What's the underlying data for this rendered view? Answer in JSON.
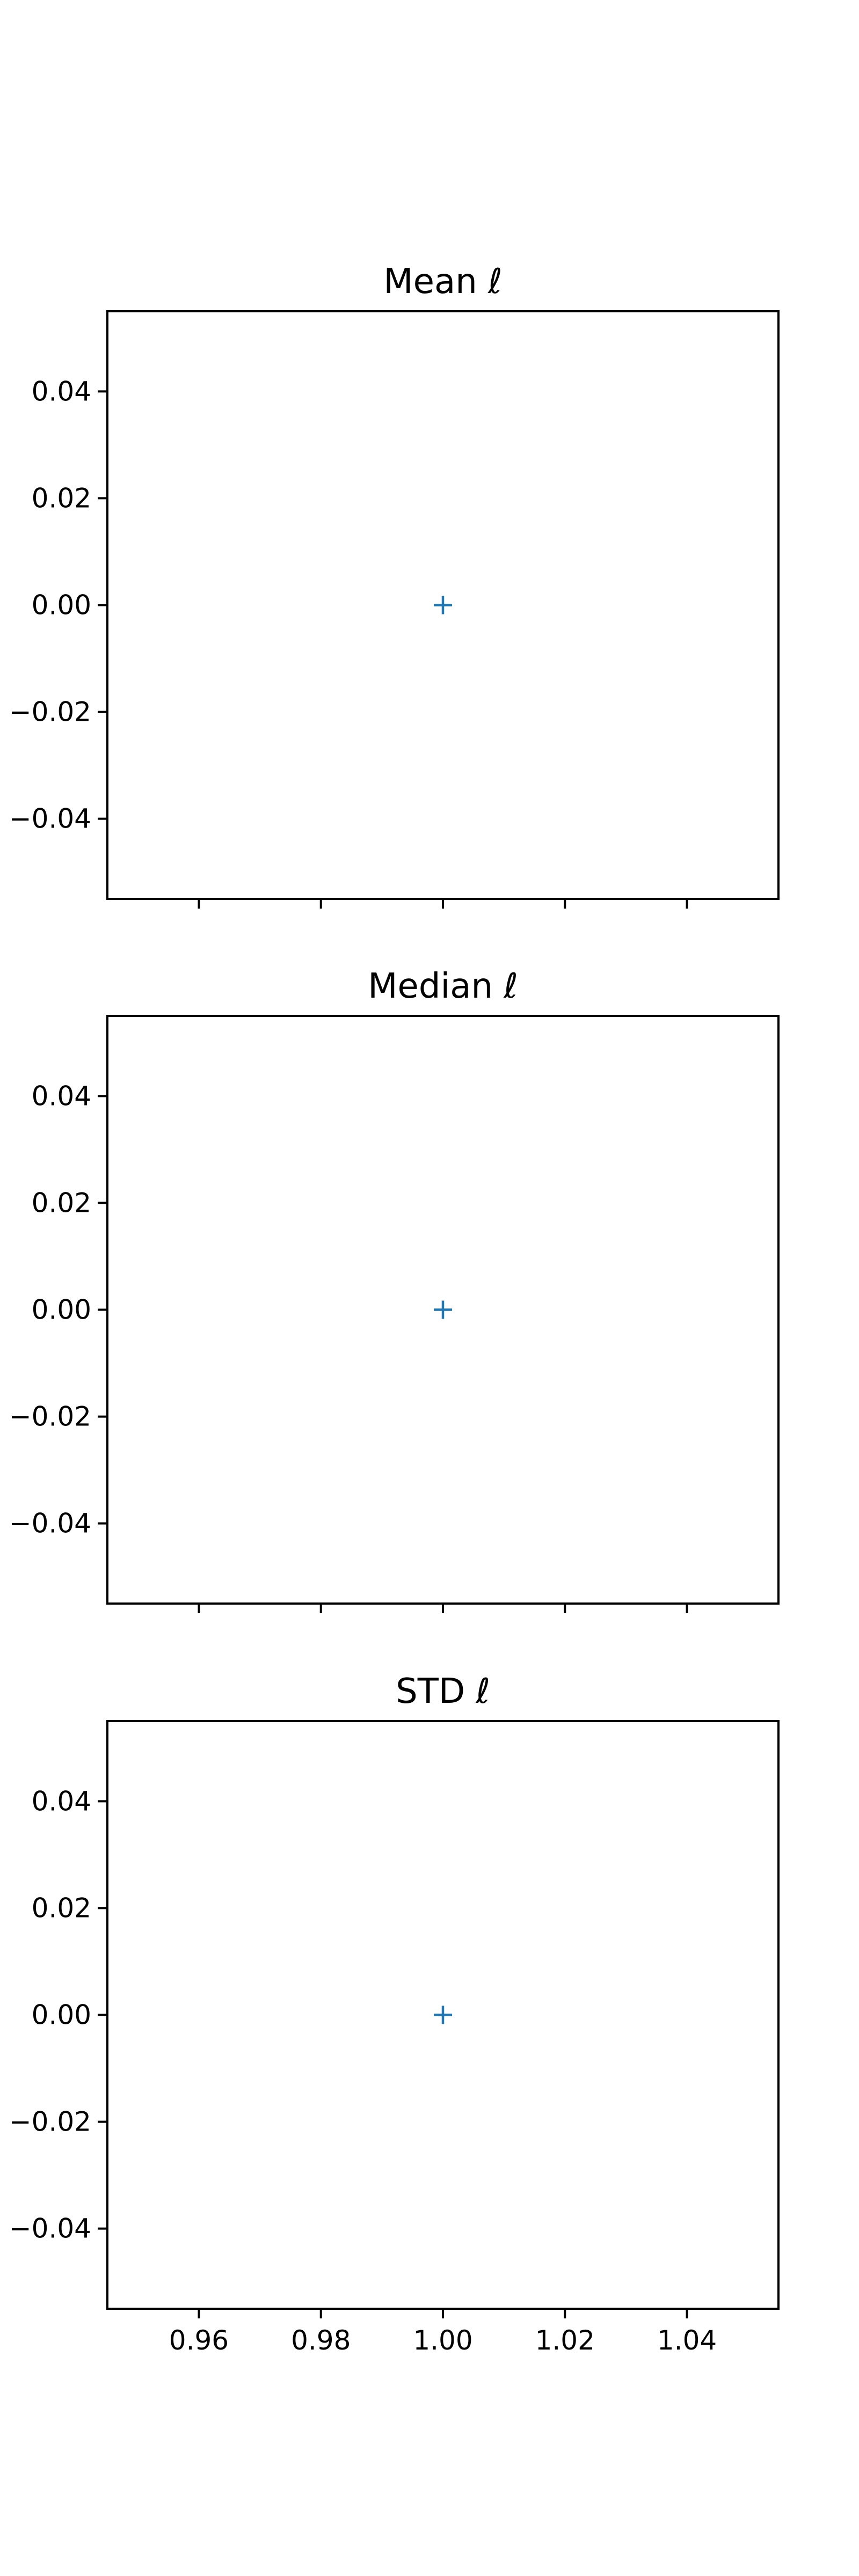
{
  "chart_data": [
    {
      "type": "scatter",
      "title": "Mean ℓ",
      "marker": "+",
      "color": "#1f77b4",
      "x": [
        1.0
      ],
      "y": [
        0.0
      ],
      "xlim": [
        0.945,
        1.055
      ],
      "ylim": [
        -0.055,
        0.055
      ],
      "xticks": [
        0.96,
        0.98,
        1.0,
        1.02,
        1.04
      ],
      "xticklabels": [],
      "yticks": [
        0.04,
        0.02,
        0.0,
        -0.02,
        -0.04
      ],
      "yticklabels": [
        "0.04",
        "0.02",
        "0.00",
        "−0.02",
        "−0.04"
      ],
      "grid": false
    },
    {
      "type": "scatter",
      "title": "Median ℓ",
      "marker": "+",
      "color": "#1f77b4",
      "x": [
        1.0
      ],
      "y": [
        0.0
      ],
      "xlim": [
        0.945,
        1.055
      ],
      "ylim": [
        -0.055,
        0.055
      ],
      "xticks": [
        0.96,
        0.98,
        1.0,
        1.02,
        1.04
      ],
      "xticklabels": [],
      "yticks": [
        0.04,
        0.02,
        0.0,
        -0.02,
        -0.04
      ],
      "yticklabels": [
        "0.04",
        "0.02",
        "0.00",
        "−0.02",
        "−0.04"
      ],
      "grid": false
    },
    {
      "type": "scatter",
      "title": "STD ℓ",
      "marker": "+",
      "color": "#1f77b4",
      "x": [
        1.0
      ],
      "y": [
        0.0
      ],
      "xlim": [
        0.945,
        1.055
      ],
      "ylim": [
        -0.055,
        0.055
      ],
      "xticks": [
        0.96,
        0.98,
        1.0,
        1.02,
        1.04
      ],
      "xticklabels": [
        "0.96",
        "0.98",
        "1.00",
        "1.02",
        "1.04"
      ],
      "yticks": [
        0.04,
        0.02,
        0.0,
        -0.02,
        -0.04
      ],
      "yticklabels": [
        "0.04",
        "0.02",
        "0.00",
        "−0.02",
        "−0.04"
      ],
      "grid": false
    }
  ]
}
